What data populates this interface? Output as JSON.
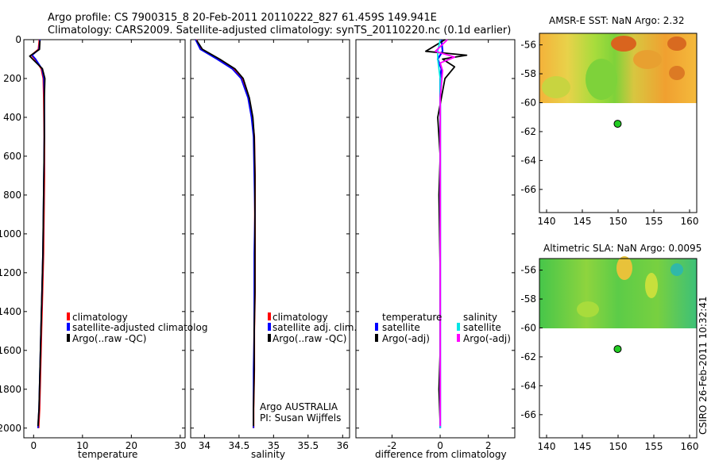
{
  "header": {
    "line1": "Argo profile: CS 7900315_8 20-Feb-2011 20110222_827 61.459S 149.941E",
    "line2": "Climatology: CARS2009. Satellite-adjusted climatology: synTS_20110220.nc (0.1d earlier)"
  },
  "footer_stamp": "CSIRO 26-Feb-2011 10:32:41",
  "colors": {
    "climatology": "#ff0000",
    "satellite": "#0000ff",
    "argo": "#000000",
    "sal_satellite": "#00e5e5",
    "sal_argo": "#ff00ff",
    "float_marker": "#22cc22"
  },
  "chart_data": [
    {
      "type": "line",
      "id": "temperature",
      "xlabel": "temperature",
      "ylabel": "",
      "xlim": [
        -2,
        31
      ],
      "ylim": [
        2050,
        0
      ],
      "xticks": [
        0,
        10,
        20,
        30
      ],
      "yticks": [
        0,
        200,
        400,
        600,
        800,
        1000,
        1200,
        1400,
        1600,
        1800,
        2000
      ],
      "legend": [
        "climatology",
        "satellite-adjusted climatolog",
        "Argo(..raw -QC)"
      ],
      "legend_placement": "middle",
      "series": [
        {
          "name": "climatology",
          "color": "#ff0000",
          "x": [
            1.2,
            1.0,
            -0.4,
            0.3,
            1.6,
            2.0,
            2.1,
            2.2,
            2.2,
            2.1,
            2.0,
            1.8,
            1.6,
            1.4,
            1.2,
            1.0
          ],
          "y": [
            0,
            50,
            80,
            100,
            150,
            200,
            300,
            500,
            700,
            900,
            1100,
            1300,
            1500,
            1700,
            1900,
            2000
          ]
        },
        {
          "name": "satellite-adjusted climatolog",
          "color": "#0000ff",
          "x": [
            1.3,
            1.1,
            -0.3,
            0.4,
            1.7,
            2.1,
            2.2,
            2.2,
            2.1,
            2.0,
            1.9,
            1.7,
            1.5,
            1.3,
            1.1,
            0.9
          ],
          "y": [
            0,
            50,
            80,
            100,
            150,
            200,
            300,
            500,
            700,
            900,
            1100,
            1300,
            1500,
            1700,
            1900,
            2000
          ]
        },
        {
          "name": "Argo(..raw -QC)",
          "color": "#000000",
          "x": [
            1.3,
            1.2,
            -0.8,
            0.0,
            1.8,
            2.3,
            2.2,
            2.2,
            2.1,
            2.0,
            1.9,
            1.7,
            1.5,
            1.3,
            1.1,
            0.9
          ],
          "y": [
            5,
            50,
            85,
            105,
            150,
            200,
            300,
            500,
            700,
            900,
            1100,
            1300,
            1500,
            1700,
            1900,
            1990
          ]
        }
      ]
    },
    {
      "type": "line",
      "id": "salinity",
      "xlabel": "salinity",
      "ylabel": "",
      "xlim": [
        33.8,
        36.1
      ],
      "ylim": [
        2050,
        0
      ],
      "xticks": [
        34,
        34.5,
        35,
        35.5,
        36
      ],
      "legend": [
        "climatology",
        "satellite adj. clim.",
        "Argo(..raw -QC)"
      ],
      "legend_placement": "middle",
      "annotation": [
        "Argo AUSTRALIA",
        "PI: Susan Wijffels"
      ],
      "series": [
        {
          "name": "climatology",
          "color": "#ff0000",
          "x": [
            33.88,
            33.95,
            34.2,
            34.42,
            34.55,
            34.64,
            34.69,
            34.72,
            34.73,
            34.73,
            34.73,
            34.73,
            34.72,
            34.72,
            34.71,
            34.71
          ],
          "y": [
            0,
            50,
            100,
            150,
            200,
            300,
            400,
            500,
            700,
            900,
            1100,
            1300,
            1500,
            1700,
            1900,
            2000
          ]
        },
        {
          "name": "satellite adj. clim.",
          "color": "#0000ff",
          "x": [
            33.87,
            33.94,
            34.18,
            34.4,
            34.53,
            34.63,
            34.68,
            34.71,
            34.72,
            34.73,
            34.72,
            34.72,
            34.72,
            34.71,
            34.71,
            34.71
          ],
          "y": [
            0,
            50,
            100,
            150,
            200,
            300,
            400,
            500,
            700,
            900,
            1100,
            1300,
            1500,
            1700,
            1900,
            2000
          ]
        },
        {
          "name": "Argo(..raw -QC)",
          "color": "#000000",
          "x": [
            33.89,
            33.97,
            34.22,
            34.44,
            34.56,
            34.65,
            34.7,
            34.72,
            34.73,
            34.73,
            34.73,
            34.73,
            34.72,
            34.72,
            34.71,
            34.71
          ],
          "y": [
            5,
            50,
            100,
            150,
            200,
            300,
            400,
            500,
            700,
            900,
            1100,
            1300,
            1500,
            1700,
            1900,
            1990
          ]
        }
      ]
    },
    {
      "type": "line",
      "id": "difference",
      "xlabel": "difference from climatology",
      "ylabel": "",
      "xlim": [
        -3.5,
        3.1
      ],
      "ylim": [
        2050,
        0
      ],
      "xticks": [
        -2,
        0,
        2
      ],
      "legend_groups": [
        {
          "title": "temperature",
          "items": [
            "satellite",
            "Argo(-adj)"
          ]
        },
        {
          "title": "salinity",
          "items": [
            "satellite",
            "Argo(-adj)"
          ]
        }
      ],
      "series": [
        {
          "name": "temperature satellite",
          "color": "#0000ff",
          "x": [
            0.05,
            0.1,
            -0.1,
            0.05,
            0.0,
            0.0,
            0.0,
            0.0,
            0.0,
            0.0,
            0.0,
            0.0
          ],
          "y": [
            0,
            60,
            100,
            150,
            200,
            400,
            600,
            800,
            1000,
            1400,
            1800,
            2000
          ]
        },
        {
          "name": "temperature Argo(-adj)",
          "color": "#000000",
          "x": [
            0.2,
            -0.6,
            1.1,
            0.1,
            0.6,
            0.2,
            -0.1,
            0.0,
            -0.05,
            0.0,
            0.0,
            -0.05,
            0.0
          ],
          "y": [
            0,
            60,
            80,
            100,
            140,
            200,
            400,
            600,
            800,
            1200,
            1600,
            1800,
            1980
          ]
        },
        {
          "name": "salinity satellite",
          "color": "#00e5e5",
          "x": [
            0.0,
            -0.1,
            -0.1,
            -0.05,
            0.0,
            0.0,
            0.0,
            0.0,
            0.0,
            0.0,
            0.0,
            0.0
          ],
          "y": [
            0,
            60,
            100,
            150,
            200,
            400,
            600,
            800,
            1000,
            1400,
            1800,
            2000
          ]
        },
        {
          "name": "salinity Argo(-adj)",
          "color": "#ff00ff",
          "x": [
            0.3,
            -0.2,
            0.6,
            0.0,
            0.1,
            0.0,
            0.0,
            0.0,
            0.0,
            0.0,
            0.0
          ],
          "y": [
            0,
            60,
            90,
            120,
            160,
            300,
            600,
            900,
            1200,
            1600,
            1990
          ]
        }
      ]
    },
    {
      "type": "heatmap",
      "id": "sst_map",
      "title": "AMSR-E SST: NaN Argo: 2.32",
      "xlim": [
        139,
        161
      ],
      "ylim": [
        -67.6,
        -55.2
      ],
      "xticks": [
        140,
        145,
        150,
        155,
        160
      ],
      "yticks": [
        -56,
        -58,
        -60,
        -62,
        -64,
        -66
      ],
      "data_region_lat_min": -60.2,
      "float": {
        "lon": 149.941,
        "lat": -61.459
      }
    },
    {
      "type": "heatmap",
      "id": "sla_map",
      "title": "Altimetric SLA: NaN Argo: 0.0095",
      "xlim": [
        139,
        161
      ],
      "ylim": [
        -67.6,
        -55.2
      ],
      "xticks": [
        140,
        145,
        150,
        155,
        160
      ],
      "yticks": [
        -56,
        -58,
        -60,
        -62,
        -64,
        -66
      ],
      "data_region_lat_min": -60.2,
      "float": {
        "lon": 149.941,
        "lat": -61.459
      }
    }
  ]
}
